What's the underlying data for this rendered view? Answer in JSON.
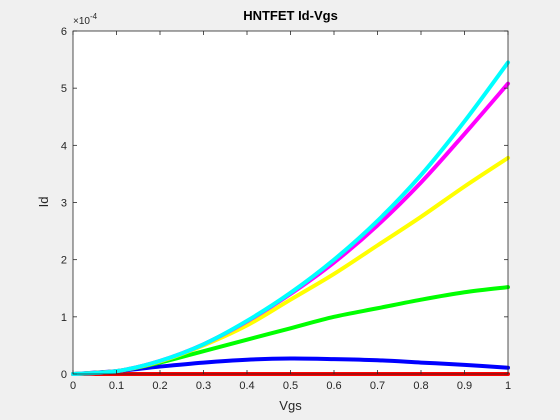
{
  "chart_data": {
    "type": "line",
    "title": "HNTFET Id-Vgs",
    "xlabel": "Vgs",
    "ylabel": "Id",
    "y_exponent_label": "×10",
    "y_exponent_power": "-4",
    "xlim": [
      0,
      1
    ],
    "ylim": [
      0,
      6
    ],
    "grid": false,
    "x_ticks": [
      0,
      0.1,
      0.2,
      0.3,
      0.4,
      0.5,
      0.6,
      0.7,
      0.8,
      0.9,
      1
    ],
    "x_tick_labels": [
      "0",
      "0.1",
      "0.2",
      "0.3",
      "0.4",
      "0.5",
      "0.6",
      "0.7",
      "0.8",
      "0.9",
      "1"
    ],
    "y_ticks": [
      0,
      1,
      2,
      3,
      4,
      5,
      6
    ],
    "y_tick_labels": [
      "0",
      "1",
      "2",
      "3",
      "4",
      "5",
      "6"
    ],
    "x": [
      0,
      0.1,
      0.2,
      0.3,
      0.4,
      0.5,
      0.6,
      0.7,
      0.8,
      0.9,
      1.0
    ],
    "series": [
      {
        "color": "#ff0000",
        "values": [
          0,
          0,
          0,
          0,
          0,
          0,
          0,
          0,
          0,
          0,
          0
        ]
      },
      {
        "color": "#0000ff",
        "values": [
          0,
          0.05,
          0.13,
          0.2,
          0.25,
          0.27,
          0.26,
          0.24,
          0.2,
          0.16,
          0.11
        ]
      },
      {
        "color": "#00ff00",
        "values": [
          0,
          0.05,
          0.2,
          0.4,
          0.6,
          0.8,
          1.0,
          1.15,
          1.3,
          1.43,
          1.52
        ]
      },
      {
        "color": "#ffff00",
        "values": [
          0,
          0.05,
          0.22,
          0.5,
          0.85,
          1.3,
          1.75,
          2.25,
          2.75,
          3.28,
          3.78
        ]
      },
      {
        "color": "#ff00ff",
        "values": [
          0,
          0.05,
          0.23,
          0.52,
          0.92,
          1.4,
          1.95,
          2.6,
          3.35,
          4.2,
          5.08
        ]
      },
      {
        "color": "#00ffff",
        "values": [
          0,
          0.05,
          0.23,
          0.52,
          0.93,
          1.42,
          2.0,
          2.68,
          3.48,
          4.42,
          5.45
        ]
      }
    ]
  }
}
